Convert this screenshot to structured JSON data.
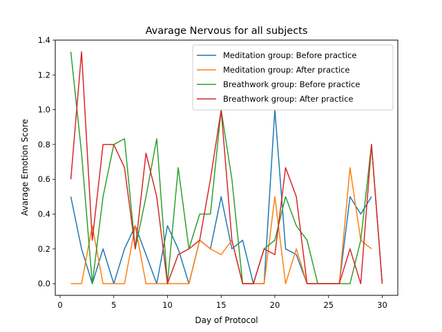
{
  "chart_data": {
    "type": "line",
    "title": "Avarage Nervous for all subjects",
    "xlabel": "Day of Protocol",
    "ylabel": "Avarage Emotion Score",
    "xlim": [
      -0.45,
      31.45
    ],
    "ylim": [
      -0.067,
      1.4
    ],
    "xticks": [
      0,
      5,
      10,
      15,
      20,
      25,
      30
    ],
    "yticks": [
      0.0,
      0.2,
      0.4,
      0.6,
      0.8,
      1.0,
      1.2,
      1.4
    ],
    "xtick_labels": [
      "0",
      "5",
      "10",
      "15",
      "20",
      "25",
      "30"
    ],
    "ytick_labels": [
      "0.0",
      "0.2",
      "0.4",
      "0.6",
      "0.8",
      "1.0",
      "1.2",
      "1.4"
    ],
    "grid": false,
    "legend_position": "top-right",
    "series": [
      {
        "name": "Meditation group: Before practice",
        "color": "#1f77b4",
        "x": [
          1,
          2,
          3,
          4,
          5,
          6,
          7,
          8,
          9,
          10,
          11,
          12,
          13,
          14,
          15,
          16,
          17,
          18,
          19,
          20,
          21,
          22,
          23,
          24,
          25,
          26,
          27,
          28,
          29
        ],
        "values": [
          0.5,
          0.2,
          0.0,
          0.2,
          0.0,
          0.2,
          0.333,
          0.167,
          0.0,
          0.333,
          0.2,
          0.0,
          0.25,
          0.2,
          0.5,
          0.2,
          0.25,
          0.0,
          0.0,
          1.0,
          0.2,
          0.167,
          0.0,
          0.0,
          0.0,
          0.0,
          0.5,
          0.4,
          0.5
        ]
      },
      {
        "name": "Meditation group: After practice",
        "color": "#ff7f0e",
        "x": [
          1,
          2,
          3,
          4,
          5,
          6,
          7,
          8,
          9,
          10,
          11,
          12,
          13,
          14,
          15,
          16,
          17,
          18,
          19,
          20,
          21,
          22,
          23,
          24,
          25,
          26,
          27,
          28,
          29
        ],
        "values": [
          0.0,
          0.0,
          0.333,
          0.0,
          0.0,
          0.0,
          0.333,
          0.0,
          0.0,
          0.0,
          0.0,
          0.0,
          0.25,
          0.2,
          0.167,
          0.25,
          0.0,
          0.0,
          0.0,
          0.5,
          0.0,
          0.2,
          0.0,
          0.0,
          0.0,
          0.0,
          0.667,
          0.25,
          0.2
        ]
      },
      {
        "name": "Breathwork group: Before practice",
        "color": "#2ca02c",
        "x": [
          1,
          2,
          3,
          4,
          5,
          6,
          7,
          8,
          9,
          10,
          11,
          12,
          13,
          14,
          15,
          16,
          17,
          18,
          19,
          20,
          21,
          22,
          23,
          24,
          25,
          26,
          27,
          28,
          29,
          30
        ],
        "values": [
          1.333,
          0.75,
          0.0,
          0.5,
          0.8,
          0.833,
          0.2,
          0.5,
          0.833,
          0.0,
          0.667,
          0.2,
          0.4,
          0.4,
          1.0,
          0.6,
          0.0,
          0.0,
          0.2,
          0.25,
          0.5,
          0.333,
          0.25,
          0.0,
          0.0,
          0.0,
          0.0,
          0.25,
          0.8,
          0.0
        ]
      },
      {
        "name": "Breathwork group: After practice",
        "color": "#d62728",
        "x": [
          1,
          2,
          3,
          4,
          5,
          6,
          7,
          8,
          9,
          10,
          11,
          12,
          13,
          14,
          15,
          16,
          17,
          18,
          19,
          20,
          21,
          22,
          23,
          24,
          25,
          26,
          27,
          28,
          29,
          30
        ],
        "values": [
          0.6,
          1.333,
          0.25,
          0.8,
          0.8,
          0.667,
          0.2,
          0.75,
          0.5,
          0.0,
          0.167,
          0.2,
          0.25,
          0.6,
          1.0,
          0.25,
          0.0,
          0.0,
          0.2,
          0.167,
          0.667,
          0.5,
          0.0,
          0.0,
          0.0,
          0.0,
          0.2,
          0.0,
          0.8,
          0.0
        ]
      }
    ]
  }
}
